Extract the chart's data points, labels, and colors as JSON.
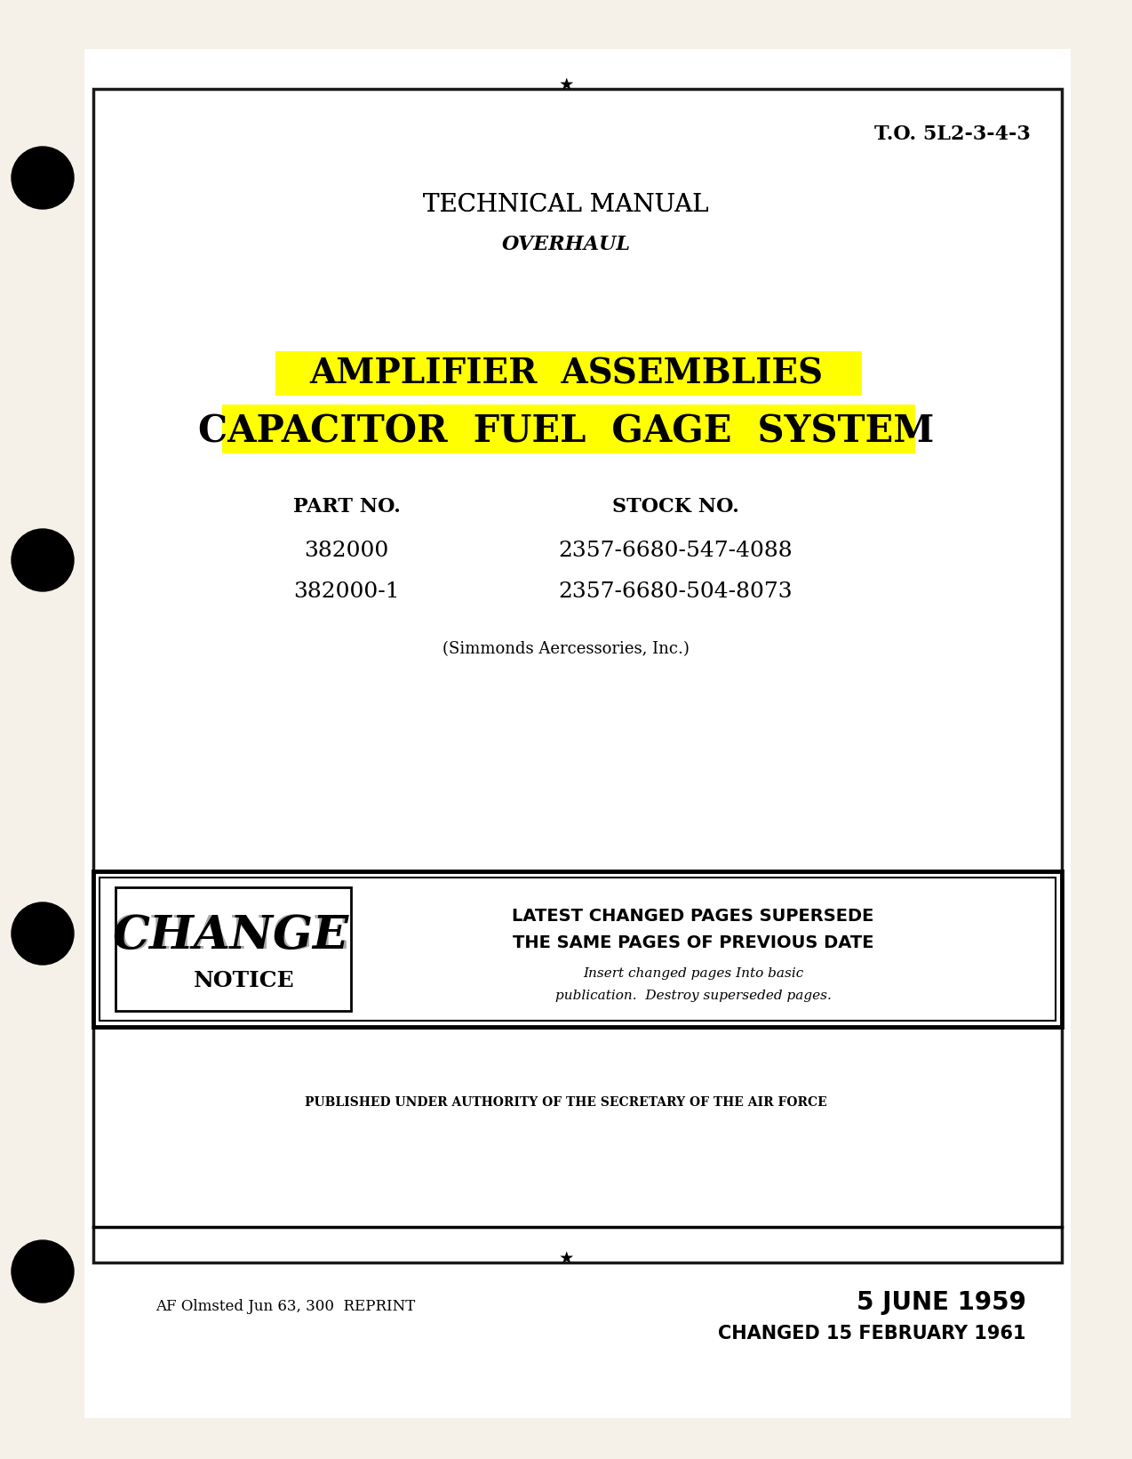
{
  "bg_color": "#f5f0e8",
  "page_bg": "#ffffff",
  "to_number": "T.O. 5L2-3-4-3",
  "tech_manual": "TECHNICAL MANUAL",
  "overhaul": "OVERHAUL",
  "title1": "AMPLIFIER  ASSEMBLIES",
  "title2": "CAPACITOR  FUEL  GAGE  SYSTEM",
  "part_no_label": "PART NO.",
  "stock_no_label": "STOCK NO.",
  "part1": "382000",
  "part2": "382000-1",
  "stock1": "2357-6680-547-4088",
  "stock2": "2357-6680-504-8073",
  "manufacturer": "(Simmonds Aercessories, Inc.)",
  "change_notice_line1": "LATEST CHANGED PAGES SUPERSEDE",
  "change_notice_line2": "THE SAME PAGES OF PREVIOUS DATE",
  "change_notice_line3": "Insert changed pages Into basic",
  "change_notice_line4": "publication.  Destroy superseded pages.",
  "published": "PUBLISHED UNDER AUTHORITY OF THE SECRETARY OF THE AIR FORCE",
  "reprint": "AF Olmsted Jun 63, 300  REPRINT",
  "date1": "5 JUNE 1959",
  "date2": "CHANGED 15 FEBRUARY 1961",
  "highlight_yellow": "#ffff00",
  "text_black": "#000000",
  "border_color": "#1a1a1a"
}
